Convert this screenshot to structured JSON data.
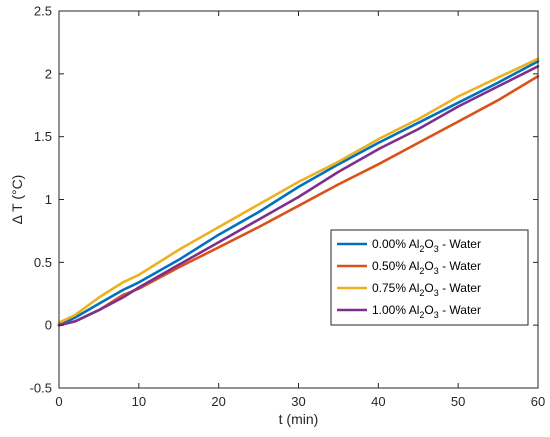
{
  "chart_data": {
    "type": "line",
    "title": "",
    "xlabel": "t (min)",
    "ylabel": "Δ T (°C)",
    "xlim": [
      0,
      60
    ],
    "ylim": [
      -0.5,
      2.5
    ],
    "xticks": [
      0,
      10,
      20,
      30,
      40,
      50,
      60
    ],
    "yticks": [
      -0.5,
      0,
      0.5,
      1,
      1.5,
      2,
      2.5
    ],
    "xtick_labels": [
      "0",
      "10",
      "20",
      "30",
      "40",
      "50",
      "60"
    ],
    "ytick_labels": [
      "-0.5",
      "0",
      "0.5",
      "1",
      "1.5",
      "2",
      "2.5"
    ],
    "grid": false,
    "legend_position": "right",
    "series": [
      {
        "name": "0.00% Al2O3 - Water",
        "label": {
          "pre": "0.00% Al",
          "sub1": "2",
          "mid": "O",
          "sub2": "3",
          "post": " - Water"
        },
        "color": "#0072BD",
        "x": [
          0,
          2,
          5,
          8,
          10,
          15,
          20,
          25,
          30,
          35,
          40,
          45,
          50,
          55,
          60
        ],
        "y": [
          0.0,
          0.06,
          0.17,
          0.28,
          0.34,
          0.52,
          0.72,
          0.9,
          1.1,
          1.28,
          1.45,
          1.61,
          1.77,
          1.93,
          2.1
        ]
      },
      {
        "name": "0.50% Al2O3 - Water",
        "label": {
          "pre": "0.50% Al",
          "sub1": "2",
          "mid": "O",
          "sub2": "3",
          "post": " - Water"
        },
        "color": "#D95319",
        "x": [
          0,
          2,
          5,
          8,
          10,
          15,
          20,
          25,
          30,
          35,
          40,
          45,
          50,
          55,
          60
        ],
        "y": [
          0.0,
          0.03,
          0.12,
          0.24,
          0.29,
          0.46,
          0.62,
          0.78,
          0.95,
          1.12,
          1.28,
          1.45,
          1.62,
          1.79,
          1.98
        ]
      },
      {
        "name": "0.75% Al2O3 - Water",
        "label": {
          "pre": "0.75% Al",
          "sub1": "2",
          "mid": "O",
          "sub2": "3",
          "post": " - Water"
        },
        "color": "#EDB120",
        "x": [
          0,
          2,
          5,
          8,
          10,
          15,
          20,
          25,
          30,
          35,
          40,
          45,
          50,
          55,
          60
        ],
        "y": [
          0.02,
          0.08,
          0.22,
          0.34,
          0.4,
          0.6,
          0.78,
          0.96,
          1.14,
          1.3,
          1.48,
          1.64,
          1.82,
          1.97,
          2.12
        ]
      },
      {
        "name": "1.00% Al2O3 - Water",
        "label": {
          "pre": "1.00% Al",
          "sub1": "2",
          "mid": "O",
          "sub2": "3",
          "post": " - Water"
        },
        "color": "#7E2F8E",
        "x": [
          0,
          2,
          5,
          8,
          10,
          15,
          20,
          25,
          30,
          35,
          40,
          45,
          50,
          55,
          60
        ],
        "y": [
          0.0,
          0.03,
          0.12,
          0.22,
          0.3,
          0.48,
          0.66,
          0.84,
          1.02,
          1.22,
          1.4,
          1.56,
          1.74,
          1.9,
          2.06
        ]
      }
    ]
  }
}
